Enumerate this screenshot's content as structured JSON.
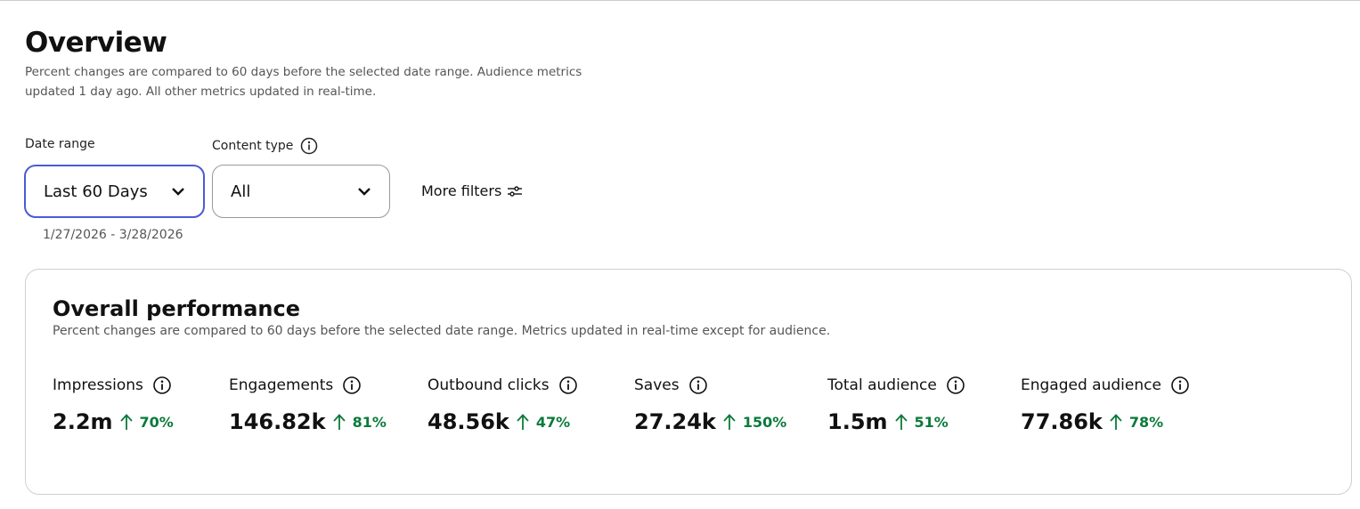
{
  "header": {
    "title": "Overview",
    "description": "Percent changes are compared to 60 days before the selected date range. Audience metrics updated 1 day ago. All other metrics updated in real-time."
  },
  "filters": {
    "date_range": {
      "label": "Date range",
      "value": "Last 60 Days",
      "dates": "1/27/2026 - 3/28/2026"
    },
    "content_type": {
      "label": "Content type",
      "value": "All"
    },
    "more_filters": "More filters"
  },
  "performance": {
    "title": "Overall performance",
    "description": "Percent changes are compared to 60 days before the selected date range. Metrics updated in real-time except for audience.",
    "metrics": [
      {
        "name": "Impressions",
        "value": "2.2m",
        "change": "70%"
      },
      {
        "name": "Engagements",
        "value": "146.82k",
        "change": "81%"
      },
      {
        "name": "Outbound clicks",
        "value": "48.56k",
        "change": "47%"
      },
      {
        "name": "Saves",
        "value": "27.24k",
        "change": "150%"
      },
      {
        "name": "Total audience",
        "value": "1.5m",
        "change": "51%"
      },
      {
        "name": "Engaged audience",
        "value": "77.86k",
        "change": "78%"
      }
    ]
  }
}
